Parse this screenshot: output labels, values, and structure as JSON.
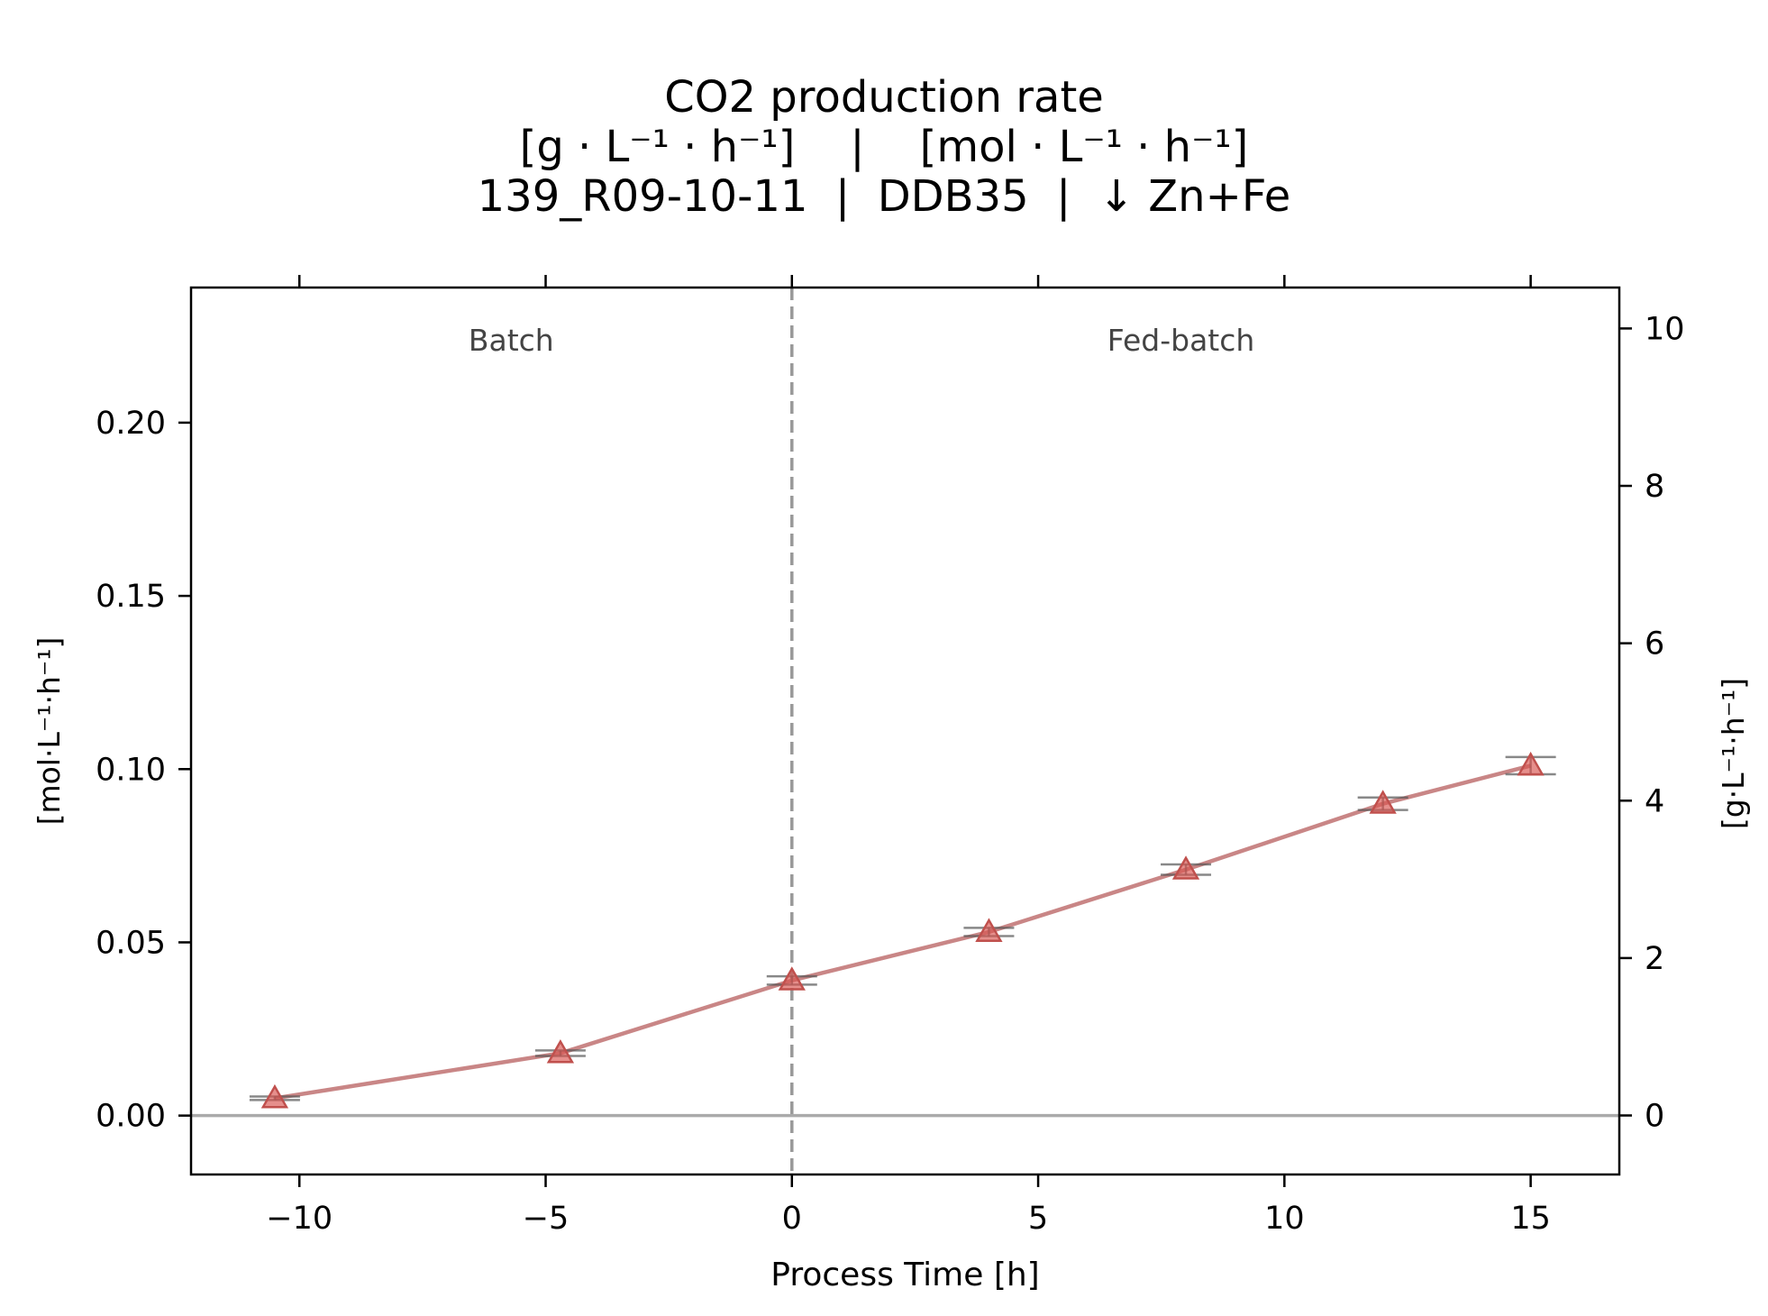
{
  "chart_data": {
    "type": "line",
    "title_lines": [
      "CO2 production rate",
      "[g · L⁻¹ · h⁻¹]    |    [mol · L⁻¹ · h⁻¹]",
      "139_R09-10-11  |  DDB35  |  ↓ Zn+Fe"
    ],
    "xlabel": "Process Time [h]",
    "ylabel_left": "[mol·L⁻¹·h⁻¹]",
    "ylabel_right": "[g·L⁻¹·h⁻¹]",
    "xlim": [
      -12.2,
      16.8
    ],
    "ylim_left": [
      -0.017,
      0.239
    ],
    "ylim_right": [
      -0.75,
      10.52
    ],
    "x_ticks": [
      -10,
      -5,
      0,
      5,
      10,
      15
    ],
    "x_tick_labels": [
      "−10",
      "−5",
      "0",
      "5",
      "10",
      "15"
    ],
    "y_left_ticks": [
      0.0,
      0.05,
      0.1,
      0.15,
      0.2
    ],
    "y_left_tick_labels": [
      "0.00",
      "0.05",
      "0.10",
      "0.15",
      "0.20"
    ],
    "y_right_ticks": [
      0,
      2,
      4,
      6,
      8,
      10
    ],
    "y_right_tick_labels": [
      "0",
      "2",
      "4",
      "6",
      "8",
      "10"
    ],
    "phase_labels": [
      {
        "text": "Batch",
        "x": -5.7
      },
      {
        "text": "Fed-batch",
        "x": 7.9
      }
    ],
    "phase_boundary_x": 0,
    "zero_line_y": 0,
    "series": [
      {
        "x": [
          -10.5,
          -4.7,
          0.0,
          4.0,
          8.0,
          12.0,
          15.0
        ],
        "y": [
          0.005,
          0.018,
          0.039,
          0.053,
          0.071,
          0.09,
          0.101
        ],
        "y_err": [
          0.0005,
          0.0008,
          0.0012,
          0.0012,
          0.0015,
          0.0018,
          0.0025
        ],
        "marker": "triangle",
        "color": "#c0504d"
      }
    ],
    "grid": false,
    "colors": {
      "line": "#c98686",
      "marker_fill": "#d9534f",
      "marker_edge": "#c0504d",
      "errorbar": "#555555",
      "phase_line": "#999999",
      "zero_line": "#aaaaaa",
      "phase_text": "#444444"
    }
  }
}
